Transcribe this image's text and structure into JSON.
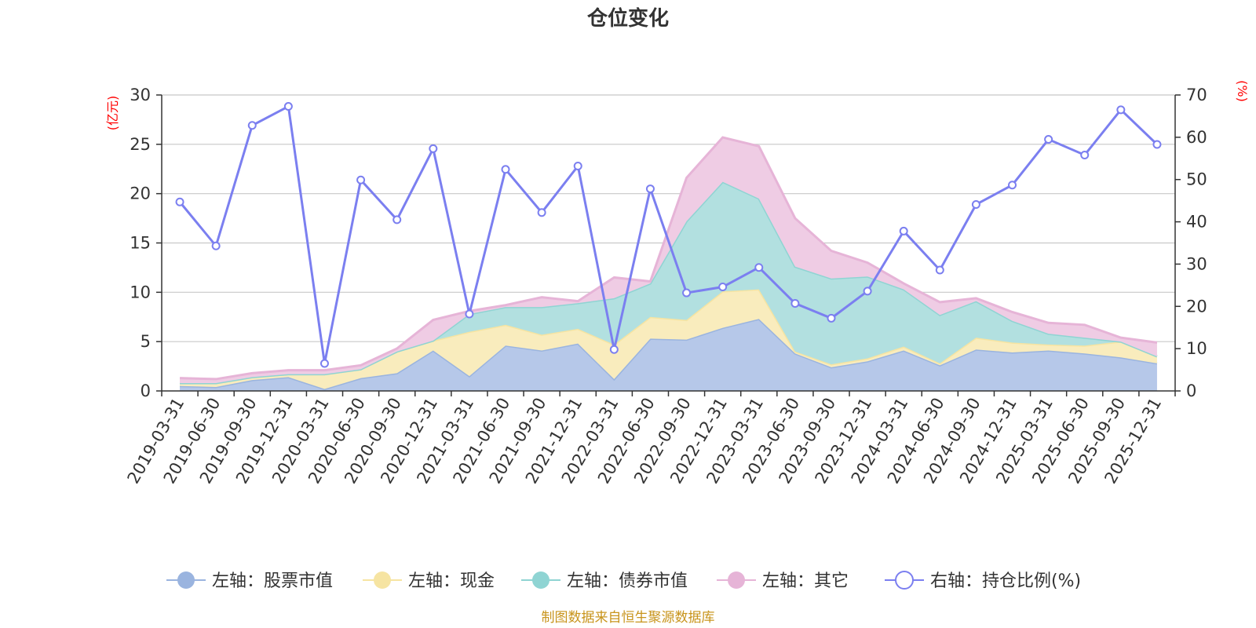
{
  "chart_data": {
    "type": "area",
    "title": "仓位变化",
    "source": "制图数据来自恒生聚源数据库",
    "left_axis": {
      "unit": "(亿元)",
      "ylim": [
        0,
        30
      ],
      "ticks": [
        "0",
        "5",
        "10",
        "15",
        "20",
        "25",
        "30"
      ]
    },
    "right_axis": {
      "unit": "(%)",
      "ylim": [
        0,
        70
      ],
      "ticks": [
        "0",
        "10",
        "20",
        "30",
        "40",
        "50",
        "60",
        "70"
      ]
    },
    "categories": [
      "2019-03-31",
      "2019-06-30",
      "2019-09-30",
      "2019-12-31",
      "2020-03-31",
      "2020-06-30",
      "2020-09-30",
      "2020-12-31",
      "2021-03-31",
      "2021-06-30",
      "2021-09-30",
      "2021-12-31",
      "2022-03-31",
      "2022-06-30",
      "2022-09-30",
      "2022-12-31",
      "2023-03-31",
      "2023-06-30",
      "2023-09-30",
      "2023-12-31",
      "2024-03-31",
      "2024-06-30",
      "2024-09-30",
      "2024-12-31",
      "2025-03-31",
      "2025-06-30",
      "2025-09-30",
      "2025-12-31"
    ],
    "stacked_series": [
      {
        "name": "左轴：股票市值",
        "color": "#9ab4df",
        "fill": "#b6c8e9",
        "values": [
          0.5,
          0.4,
          1.1,
          1.4,
          0.2,
          1.3,
          1.8,
          4.1,
          1.5,
          4.6,
          4.1,
          4.8,
          1.2,
          5.3,
          5.2,
          6.4,
          7.3,
          3.8,
          2.4,
          3.0,
          4.1,
          2.6,
          4.2,
          3.9,
          4.1,
          3.8,
          3.4,
          2.8
        ]
      },
      {
        "name": "左轴：现金",
        "color": "#f6e4a2",
        "fill": "#f9ecbd",
        "values": [
          0.3,
          0.4,
          0.3,
          0.3,
          1.5,
          0.9,
          2.2,
          1.0,
          4.5,
          2.1,
          1.6,
          1.5,
          3.5,
          2.2,
          2.0,
          3.7,
          3.0,
          0.2,
          0.3,
          0.3,
          0.4,
          0.2,
          1.2,
          1.0,
          0.6,
          0.8,
          1.6,
          0.7
        ]
      },
      {
        "name": "左轴：债券市值",
        "color": "#8fd4d3",
        "fill": "#b2e0e0",
        "values": [
          0.0,
          0.0,
          0.0,
          0.0,
          0.0,
          0.0,
          0.0,
          0.0,
          1.8,
          1.8,
          2.8,
          2.6,
          4.7,
          3.4,
          10.0,
          11.1,
          9.2,
          8.6,
          8.7,
          8.3,
          5.8,
          4.9,
          3.7,
          2.2,
          1.1,
          0.8,
          0.0,
          0.0
        ]
      },
      {
        "name": "左轴：其它",
        "color": "#e6b4d7",
        "fill": "#efcce4",
        "values": [
          0.5,
          0.4,
          0.4,
          0.4,
          0.4,
          0.4,
          0.3,
          2.1,
          0.3,
          0.2,
          1.0,
          0.2,
          2.1,
          0.2,
          4.4,
          4.5,
          5.3,
          4.9,
          2.8,
          1.4,
          0.6,
          1.3,
          0.3,
          0.9,
          1.1,
          1.3,
          0.4,
          1.4
        ]
      }
    ],
    "line_series": {
      "name": "右轴：持仓比例(%)",
      "color": "#7b7ff0",
      "axis": "right",
      "values": [
        44.7,
        34.3,
        62.8,
        67.3,
        6.5,
        49.9,
        40.5,
        57.3,
        18.2,
        52.4,
        42.2,
        53.2,
        9.8,
        47.8,
        23.2,
        24.6,
        29.2,
        20.7,
        17.2,
        23.6,
        37.8,
        28.6,
        44.1,
        48.7,
        59.5,
        55.8,
        66.5,
        58.3
      ]
    }
  }
}
